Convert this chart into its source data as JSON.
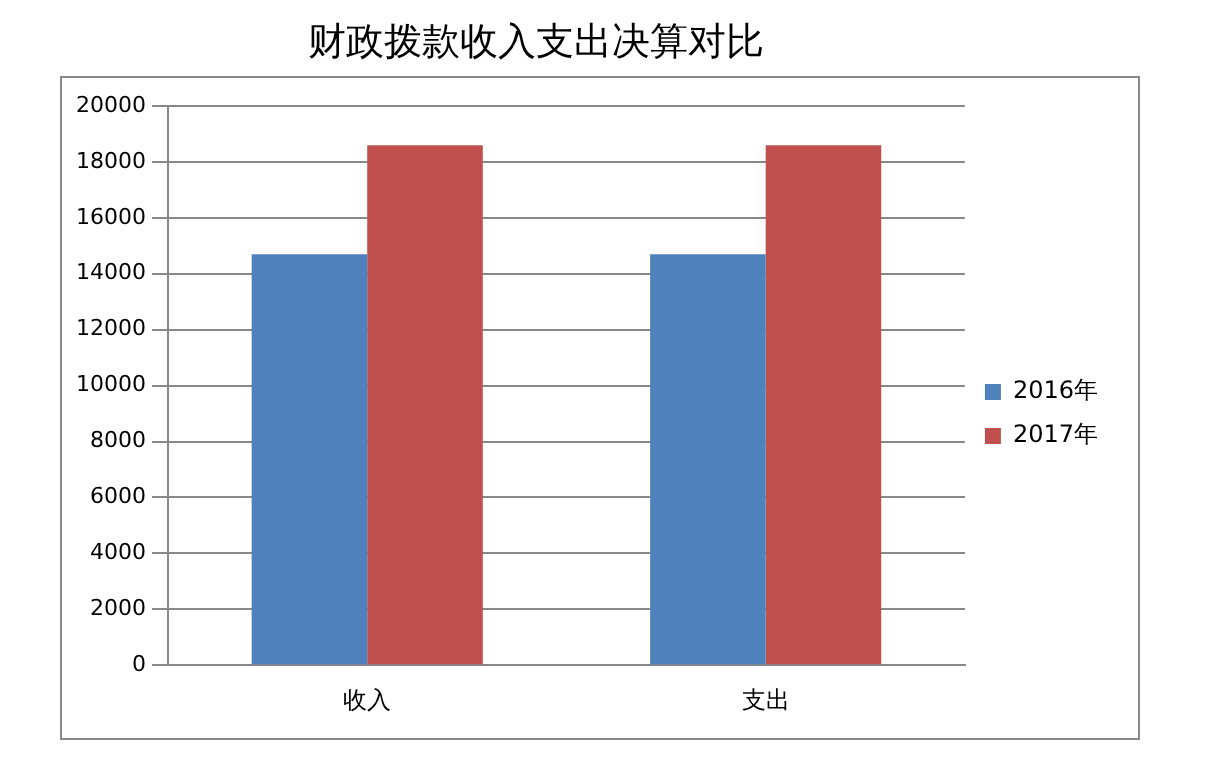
{
  "chart_data": {
    "type": "bar",
    "title": "财政拨款收入支出决算对比",
    "categories": [
      "收入",
      "支出"
    ],
    "series": [
      {
        "name": "2016年",
        "color": "#4f81bd",
        "values": [
          14700,
          14700
        ]
      },
      {
        "name": "2017年",
        "color": "#c0504d",
        "values": [
          18600,
          18600
        ]
      }
    ],
    "ylim": [
      0,
      20000
    ],
    "yticks": [
      0,
      2000,
      4000,
      6000,
      8000,
      10000,
      12000,
      14000,
      16000,
      18000,
      20000
    ],
    "grid": "y",
    "legend": "right"
  }
}
